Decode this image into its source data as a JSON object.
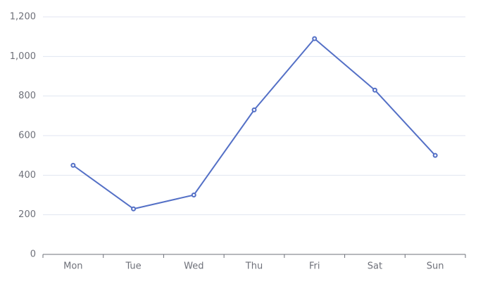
{
  "chart_data": {
    "type": "line",
    "categories": [
      "Mon",
      "Tue",
      "Wed",
      "Thu",
      "Fri",
      "Sat",
      "Sun"
    ],
    "values": [
      450,
      230,
      300,
      730,
      1090,
      830,
      500
    ],
    "color": "#5470c6",
    "ylim": [
      0,
      1200
    ],
    "yticks": [
      0,
      200,
      400,
      600,
      800,
      {
        "value": 1000,
        "label": "1,000"
      },
      {
        "value": 1200,
        "label": "1,200"
      }
    ],
    "grid": true
  }
}
